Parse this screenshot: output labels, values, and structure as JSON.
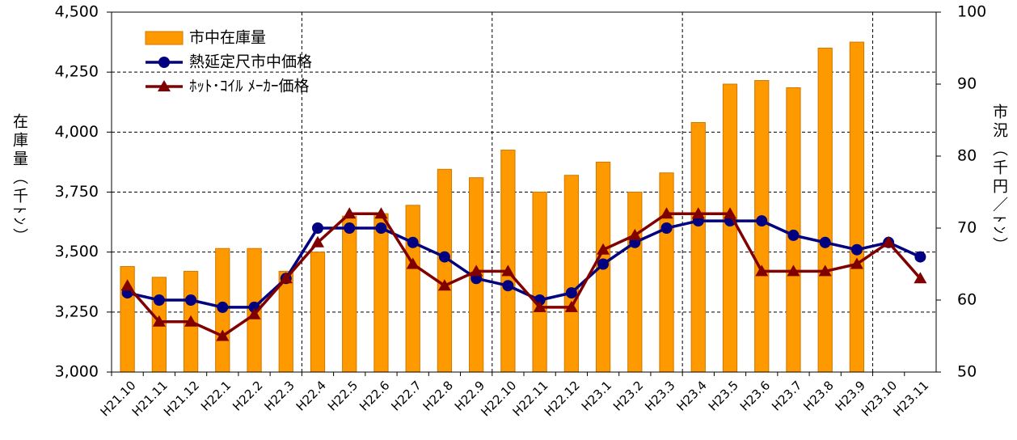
{
  "chart_data": {
    "type": "bar-line",
    "y_axis_label": "在庫量（千ﾄﾝ）",
    "y2_axis_label": "市況（千円／ﾄﾝ）",
    "categories": [
      "H21.10",
      "H21.11",
      "H21.12",
      "H22.1",
      "H22.2",
      "H22.3",
      "H22.4",
      "H22.5",
      "H22.6",
      "H22.7",
      "H22.8",
      "H22.9",
      "H22.10",
      "H22.11",
      "H22.12",
      "H23.1",
      "H23.2",
      "H23.3",
      "H23.4",
      "H23.5",
      "H23.6",
      "H23.7",
      "H23.8",
      "H23.9",
      "H23.10",
      "H23.11"
    ],
    "series": [
      {
        "name": "市中在庫量",
        "type": "bar",
        "axis": "y",
        "color": "#ff9900",
        "values": [
          3440,
          3395,
          3420,
          3515,
          3515,
          3420,
          3500,
          3650,
          3660,
          3695,
          3845,
          3810,
          3925,
          3750,
          3820,
          3875,
          3750,
          3830,
          4040,
          4200,
          4215,
          4185,
          4350,
          4375,
          null,
          null
        ]
      },
      {
        "name": "熱延定尺市中価格",
        "type": "line",
        "marker": "circle",
        "axis": "y2",
        "color": "#000080",
        "values": [
          61,
          60,
          60,
          59,
          59,
          63,
          70,
          70,
          70,
          68,
          66,
          63,
          62,
          60,
          61,
          65,
          68,
          70,
          71,
          71,
          71,
          69,
          68,
          67,
          68,
          66
        ]
      },
      {
        "name": "ﾎｯﾄ･ｺｲﾙ ﾒｰｶｰ価格",
        "type": "line",
        "marker": "triangle",
        "axis": "y2",
        "color": "#800000",
        "values": [
          62,
          57,
          57,
          55,
          58,
          63,
          68,
          72,
          72,
          65,
          62,
          64,
          64,
          59,
          59,
          67,
          69,
          72,
          72,
          72,
          64,
          64,
          64,
          65,
          68,
          63
        ]
      }
    ],
    "ylim": [
      3000,
      4500
    ],
    "yticks": [
      {
        "value": 3000,
        "label": "3,000"
      },
      {
        "value": 3250,
        "label": "3,250"
      },
      {
        "value": 3500,
        "label": "3,500"
      },
      {
        "value": 3750,
        "label": "3,750"
      },
      {
        "value": 4000,
        "label": "4,000"
      },
      {
        "value": 4250,
        "label": "4,250"
      },
      {
        "value": 4500,
        "label": "4,500"
      }
    ],
    "y2lim": [
      50,
      100
    ],
    "y2ticks": [
      50,
      60,
      70,
      80,
      90,
      100
    ],
    "grid": true,
    "legend": "upper-left"
  }
}
